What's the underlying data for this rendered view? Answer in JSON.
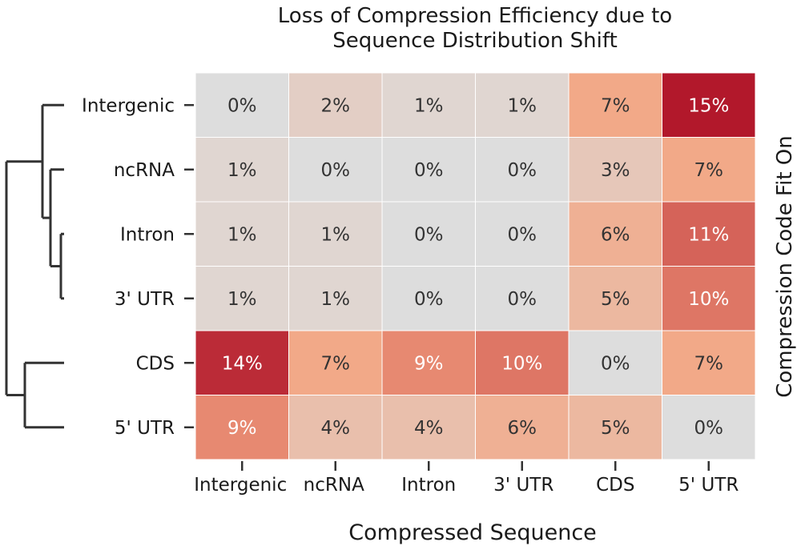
{
  "chart_data": {
    "type": "heatmap",
    "title_lines": [
      "Loss of Compression Efficiency due to",
      "Sequence  Distribution Shift"
    ],
    "xlabel": "Compressed Sequence",
    "ylabel": "Compression Code Fit On",
    "rows": [
      "Intergenic",
      "ncRNA",
      "Intron",
      "3' UTR",
      "CDS",
      "5' UTR"
    ],
    "columns": [
      "Intergenic",
      "ncRNA",
      "Intron",
      "3' UTR",
      "CDS",
      "5' UTR"
    ],
    "values": [
      [
        0,
        2,
        1,
        1,
        7,
        15
      ],
      [
        1,
        0,
        0,
        0,
        3,
        7
      ],
      [
        1,
        1,
        0,
        0,
        6,
        11
      ],
      [
        1,
        1,
        0,
        0,
        5,
        10
      ],
      [
        14,
        7,
        9,
        10,
        0,
        7
      ],
      [
        9,
        4,
        4,
        6,
        5,
        0
      ]
    ],
    "labels": [
      [
        "0%",
        "2%",
        "1%",
        "1%",
        "7%",
        "15%"
      ],
      [
        "1%",
        "0%",
        "0%",
        "0%",
        "3%",
        "7%"
      ],
      [
        "1%",
        "1%",
        "0%",
        "0%",
        "6%",
        "11%"
      ],
      [
        "1%",
        "1%",
        "0%",
        "0%",
        "5%",
        "10%"
      ],
      [
        "14%",
        "7%",
        "9%",
        "10%",
        "0%",
        "7%"
      ],
      [
        "9%",
        "4%",
        "4%",
        "6%",
        "5%",
        "0%"
      ]
    ],
    "color_range": [
      0,
      15
    ],
    "colors": {
      "low": "#dddddd",
      "mid": "#f4a582",
      "high": "#b2182b",
      "text_dark": "#333333",
      "text_light": "#ffffff",
      "dendrogram": "#333333"
    },
    "dendrogram": "row clustering: ((Intergenic, (ncRNA, (Intron, 3' UTR))), (CDS, 5' UTR))"
  }
}
